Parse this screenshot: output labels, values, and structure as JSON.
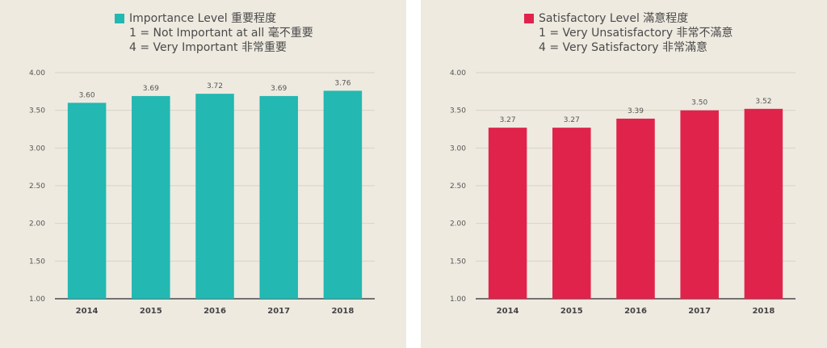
{
  "charts": [
    {
      "legend": {
        "title": "Importance Level 重要程度",
        "line1": "1 = Not Important at all 毫不重要",
        "line2": "4 = Very Important 非常重要"
      }
    },
    {
      "legend": {
        "title": "Satisfactory Level 滿意程度",
        "line1": "1 = Very Unsatisfactory 非常不滿意",
        "line2": "4 = Very Satisfactory 非常滿意"
      }
    }
  ],
  "chart_data": [
    {
      "type": "bar",
      "categories": [
        "2014",
        "2015",
        "2016",
        "2017",
        "2018"
      ],
      "series": [
        {
          "name": "Importance Level 重要程度",
          "values": [
            3.6,
            3.69,
            3.72,
            3.69,
            3.76
          ],
          "color": "#23b8b2"
        }
      ],
      "ylim": [
        1.0,
        4.0
      ],
      "yticks": [
        "1.00",
        "1.50",
        "2.00",
        "2.50",
        "3.00",
        "3.50",
        "4.00"
      ],
      "data_labels": [
        "3.60",
        "3.69",
        "3.72",
        "3.69",
        "3.76"
      ],
      "grid": true,
      "legend_position": "top"
    },
    {
      "type": "bar",
      "categories": [
        "2014",
        "2015",
        "2016",
        "2017",
        "2018"
      ],
      "series": [
        {
          "name": "Satisfactory Level 滿意程度",
          "values": [
            3.27,
            3.27,
            3.39,
            3.5,
            3.52
          ],
          "color": "#e0234b"
        }
      ],
      "ylim": [
        1.0,
        4.0
      ],
      "yticks": [
        "1.00",
        "1.50",
        "2.00",
        "2.50",
        "3.00",
        "3.50",
        "4.00"
      ],
      "data_labels": [
        "3.27",
        "3.27",
        "3.39",
        "3.50",
        "3.52"
      ],
      "grid": true,
      "legend_position": "top"
    }
  ]
}
